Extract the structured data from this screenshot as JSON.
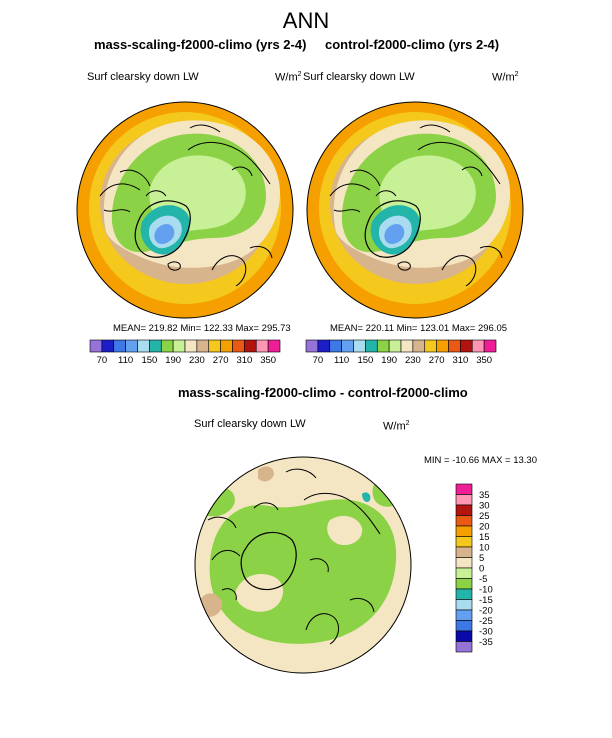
{
  "title": "ANN",
  "panels": [
    {
      "title": "mass-scaling-f2000-climo (yrs 2-4)",
      "variable": "Surf clearsky down LW",
      "units": "W/m",
      "units_exp": "2",
      "stats": "MEAN= 219.82  Min= 122.33  Max= 295.73"
    },
    {
      "title": "control-f2000-climo (yrs 2-4)",
      "variable": "Surf clearsky down LW",
      "units": "W/m",
      "units_exp": "2",
      "stats": "MEAN= 220.11  Min= 123.01  Max= 296.05"
    }
  ],
  "diff": {
    "title": "mass-scaling-f2000-climo - control-f2000-climo",
    "variable": "Surf clearsky down LW",
    "units": "W/m",
    "units_exp": "2",
    "stats": "MIN = -10.66 MAX =  13.30"
  },
  "colors": {
    "field": [
      "#9673d6",
      "#1e1ec8",
      "#3c78e6",
      "#64a0f0",
      "#aadcf0",
      "#23b4aa",
      "#8cd246",
      "#c8f096",
      "#f5e6c3",
      "#d7b48c",
      "#f5c81e",
      "#f5a000",
      "#eb5a14",
      "#b4140f",
      "#ff96b4",
      "#f01e96"
    ],
    "diff": [
      "#9673d6",
      "#0a0aaa",
      "#3c78e6",
      "#64a0f0",
      "#aadcf0",
      "#23b4aa",
      "#8cd246",
      "#c8f096",
      "#f5e6c3",
      "#d7b48c",
      "#f5c81e",
      "#f5a000",
      "#eb5a14",
      "#b4140f",
      "#ff96b4",
      "#f01e96"
    ]
  },
  "chart_data": [
    {
      "type": "heatmap",
      "title": "mass-scaling-f2000-climo (yrs 2-4)",
      "projection": "north polar stereographic",
      "variable": "Surf clearsky down LW",
      "units": "W/m2",
      "mean": 219.82,
      "min": 122.33,
      "max": 295.73,
      "colorbar_levels": [
        70,
        90,
        110,
        130,
        150,
        170,
        190,
        210,
        230,
        250,
        270,
        290,
        310,
        330,
        350
      ],
      "colorbar_labels": [
        "70",
        "110",
        "150",
        "190",
        "230",
        "270",
        "310",
        "350"
      ]
    },
    {
      "type": "heatmap",
      "title": "control-f2000-climo (yrs 2-4)",
      "projection": "north polar stereographic",
      "variable": "Surf clearsky down LW",
      "units": "W/m2",
      "mean": 220.11,
      "min": 123.01,
      "max": 296.05,
      "colorbar_levels": [
        70,
        90,
        110,
        130,
        150,
        170,
        190,
        210,
        230,
        250,
        270,
        290,
        310,
        330,
        350
      ],
      "colorbar_labels": [
        "70",
        "110",
        "150",
        "190",
        "230",
        "270",
        "310",
        "350"
      ]
    },
    {
      "type": "heatmap",
      "title": "mass-scaling-f2000-climo - control-f2000-climo",
      "projection": "north polar stereographic",
      "variable": "Surf clearsky down LW",
      "units": "W/m2",
      "min": -10.66,
      "max": 13.3,
      "colorbar_levels": [
        -35,
        -30,
        -25,
        -20,
        -15,
        -10,
        -5,
        0,
        5,
        10,
        15,
        20,
        25,
        30,
        35
      ],
      "colorbar_labels": [
        "35",
        "30",
        "25",
        "20",
        "15",
        "10",
        "5",
        "0",
        "-5",
        "-10",
        "-15",
        "-20",
        "-25",
        "-30",
        "-35"
      ]
    }
  ]
}
